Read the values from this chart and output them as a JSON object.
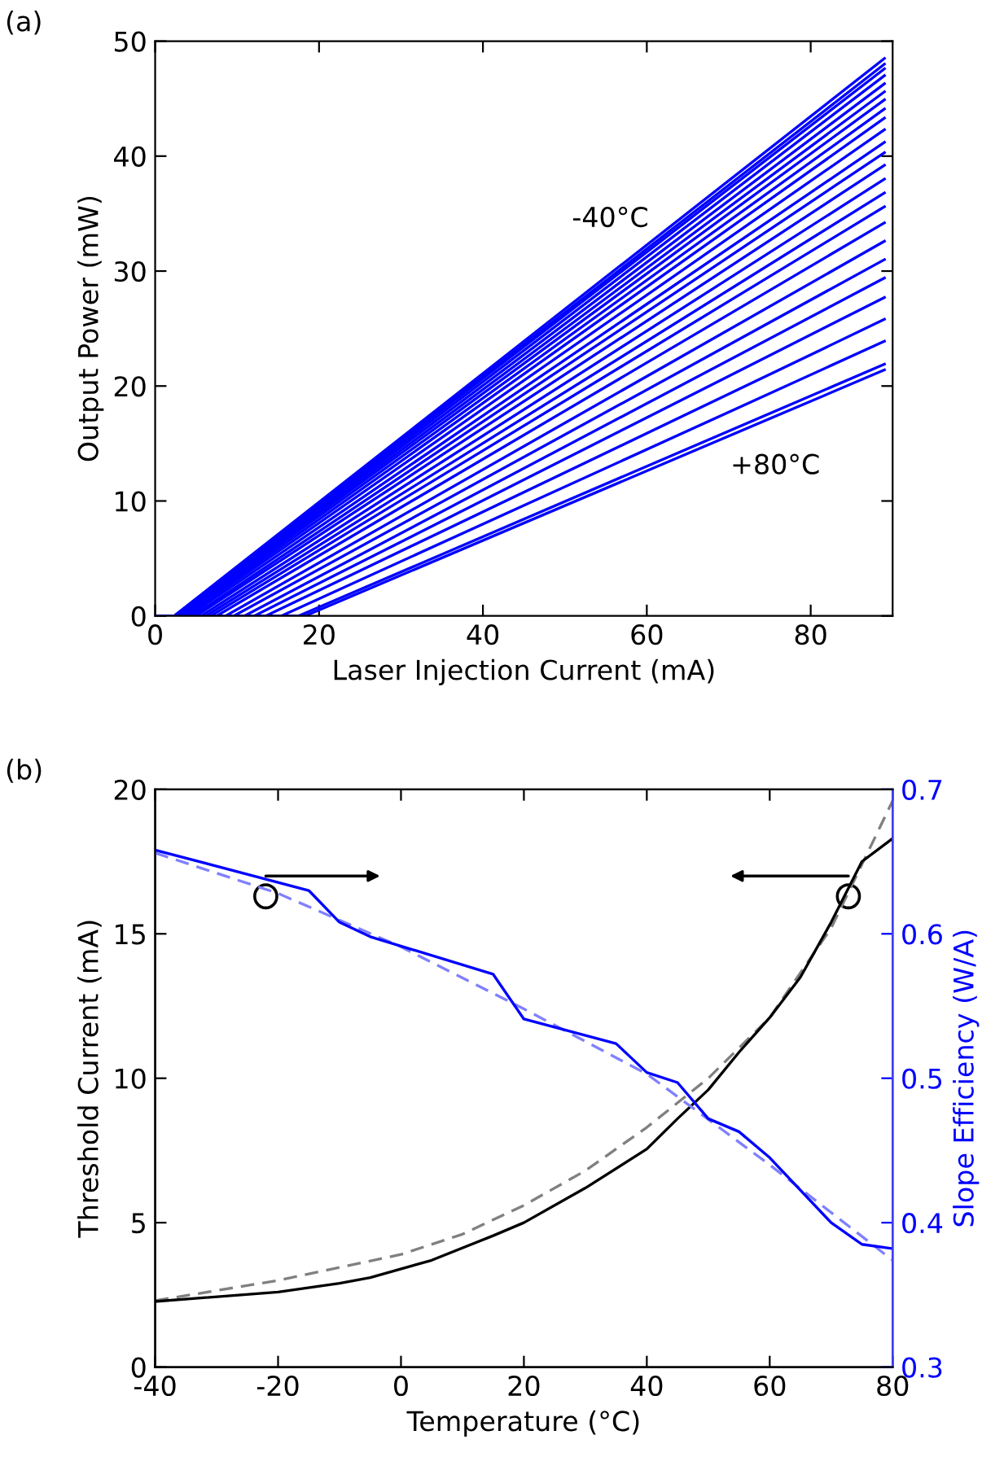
{
  "chart_data": [
    {
      "type": "line",
      "title": "(a)",
      "xlabel": "Laser Injection Current (mA)",
      "ylabel": "Output Power (mW)",
      "xlim": [
        0,
        90
      ],
      "xticks": [
        0,
        20,
        40,
        60,
        80
      ],
      "ylim": [
        0,
        50
      ],
      "yticks": [
        0,
        10,
        20,
        30,
        40,
        50
      ],
      "grid": false,
      "legend": false,
      "annotations": [
        "-40°C",
        "+80°C"
      ],
      "series": [
        {
          "color": "#0000ff",
          "x": [
            0,
            2.3,
            89
          ],
          "values": [
            0,
            0,
            48.5
          ]
        },
        {
          "color": "#0000ff",
          "x": [
            0,
            2.35,
            89
          ],
          "values": [
            0,
            0,
            48.0
          ]
        },
        {
          "color": "#0000ff",
          "x": [
            0,
            2.4,
            89
          ],
          "values": [
            0,
            0,
            47.6
          ]
        },
        {
          "color": "#0000ff",
          "x": [
            0,
            2.5,
            89
          ],
          "values": [
            0,
            0,
            47.0
          ]
        },
        {
          "color": "#0000ff",
          "x": [
            0,
            2.6,
            89
          ],
          "values": [
            0,
            0,
            46.3
          ]
        },
        {
          "color": "#0000ff",
          "x": [
            0,
            2.75,
            89
          ],
          "values": [
            0,
            0,
            45.6
          ]
        },
        {
          "color": "#0000ff",
          "x": [
            0,
            2.9,
            89
          ],
          "values": [
            0,
            0,
            44.9
          ]
        },
        {
          "color": "#0000ff",
          "x": [
            0,
            3.1,
            89
          ],
          "values": [
            0,
            0,
            44.1
          ]
        },
        {
          "color": "#0000ff",
          "x": [
            0,
            3.4,
            89
          ],
          "values": [
            0,
            0,
            43.3
          ]
        },
        {
          "color": "#0000ff",
          "x": [
            0,
            3.7,
            89
          ],
          "values": [
            0,
            0,
            42.3
          ]
        },
        {
          "color": "#0000ff",
          "x": [
            0,
            4.1,
            89
          ],
          "values": [
            0,
            0,
            41.2
          ]
        },
        {
          "color": "#0000ff",
          "x": [
            0,
            4.6,
            89
          ],
          "values": [
            0,
            0,
            40.3
          ]
        },
        {
          "color": "#0000ff",
          "x": [
            0,
            5.0,
            89
          ],
          "values": [
            0,
            0,
            39.2
          ]
        },
        {
          "color": "#0000ff",
          "x": [
            0,
            5.6,
            89
          ],
          "values": [
            0,
            0,
            38.0
          ]
        },
        {
          "color": "#0000ff",
          "x": [
            0,
            6.2,
            89
          ],
          "values": [
            0,
            0,
            36.8
          ]
        },
        {
          "color": "#0000ff",
          "x": [
            0,
            6.8,
            89
          ],
          "values": [
            0,
            0,
            35.6
          ]
        },
        {
          "color": "#0000ff",
          "x": [
            0,
            7.5,
            89
          ],
          "values": [
            0,
            0,
            34.2
          ]
        },
        {
          "color": "#0000ff",
          "x": [
            0,
            8.6,
            89
          ],
          "values": [
            0,
            0,
            32.6
          ]
        },
        {
          "color": "#0000ff",
          "x": [
            0,
            9.6,
            89
          ],
          "values": [
            0,
            0,
            31.0
          ]
        },
        {
          "color": "#0000ff",
          "x": [
            0,
            10.9,
            89
          ],
          "values": [
            0,
            0,
            29.4
          ]
        },
        {
          "color": "#0000ff",
          "x": [
            0,
            12.1,
            89
          ],
          "values": [
            0,
            0,
            27.7
          ]
        },
        {
          "color": "#0000ff",
          "x": [
            0,
            13.5,
            89
          ],
          "values": [
            0,
            0,
            25.8
          ]
        },
        {
          "color": "#0000ff",
          "x": [
            0,
            15.4,
            89
          ],
          "values": [
            0,
            0,
            23.9
          ]
        },
        {
          "color": "#0000ff",
          "x": [
            0,
            17.5,
            89
          ],
          "values": [
            0,
            0,
            21.9
          ]
        },
        {
          "color": "#0000ff",
          "x": [
            0,
            18.3,
            89
          ],
          "values": [
            0,
            0,
            21.4
          ]
        }
      ]
    },
    {
      "type": "line",
      "title": "(b)",
      "xlabel": "Temperature (°C)",
      "ylabel": "Threshold Current (mA)",
      "y2label": "Slope Efficiency (W/A)",
      "xlim": [
        -40,
        80
      ],
      "xticks": [
        -40,
        -20,
        0,
        20,
        40,
        60,
        80
      ],
      "ylim": [
        0,
        20
      ],
      "yticks": [
        0,
        5,
        10,
        15,
        20
      ],
      "y2lim": [
        0.3,
        0.7
      ],
      "y2ticks": [
        0.3,
        0.4,
        0.5,
        0.6,
        0.7
      ],
      "grid": false,
      "legend": false,
      "series": [
        {
          "color": "#808080",
          "line_style": "dashed",
          "x": [
            -40,
            -20,
            0,
            10,
            20,
            30,
            40,
            50,
            60,
            70,
            80
          ],
          "values": [
            2.3,
            3.0,
            3.9,
            4.6,
            5.6,
            6.8,
            8.3,
            10.0,
            12.1,
            15.2,
            19.6
          ]
        },
        {
          "color": "#000000",
          "line_style": "solid",
          "x": [
            -40,
            -20,
            -10,
            -5,
            5,
            15,
            20,
            30,
            40,
            45,
            50,
            55,
            60,
            65,
            70,
            75,
            80
          ],
          "values": [
            2.27,
            2.6,
            2.9,
            3.1,
            3.7,
            4.55,
            5.0,
            6.2,
            7.55,
            8.6,
            9.6,
            10.9,
            12.1,
            13.5,
            15.4,
            17.5,
            18.3
          ]
        },
        {
          "color": "#8080ff",
          "line_style": "dashed",
          "axis": "y2",
          "x": [
            -40,
            -20,
            0,
            20,
            40,
            60,
            80
          ],
          "values": [
            0.656,
            0.628,
            0.591,
            0.548,
            0.503,
            0.44,
            0.374
          ]
        },
        {
          "color": "#0000ff",
          "line_style": "solid",
          "axis": "y2",
          "x": [
            -40,
            -15,
            -10,
            -5,
            15,
            20,
            35,
            40,
            45,
            50,
            55,
            60,
            70,
            75,
            80
          ],
          "values": [
            0.658,
            0.63,
            0.608,
            0.598,
            0.572,
            0.541,
            0.524,
            0.504,
            0.497,
            0.472,
            0.463,
            0.445,
            0.4,
            0.385,
            0.382
          ]
        }
      ]
    }
  ]
}
